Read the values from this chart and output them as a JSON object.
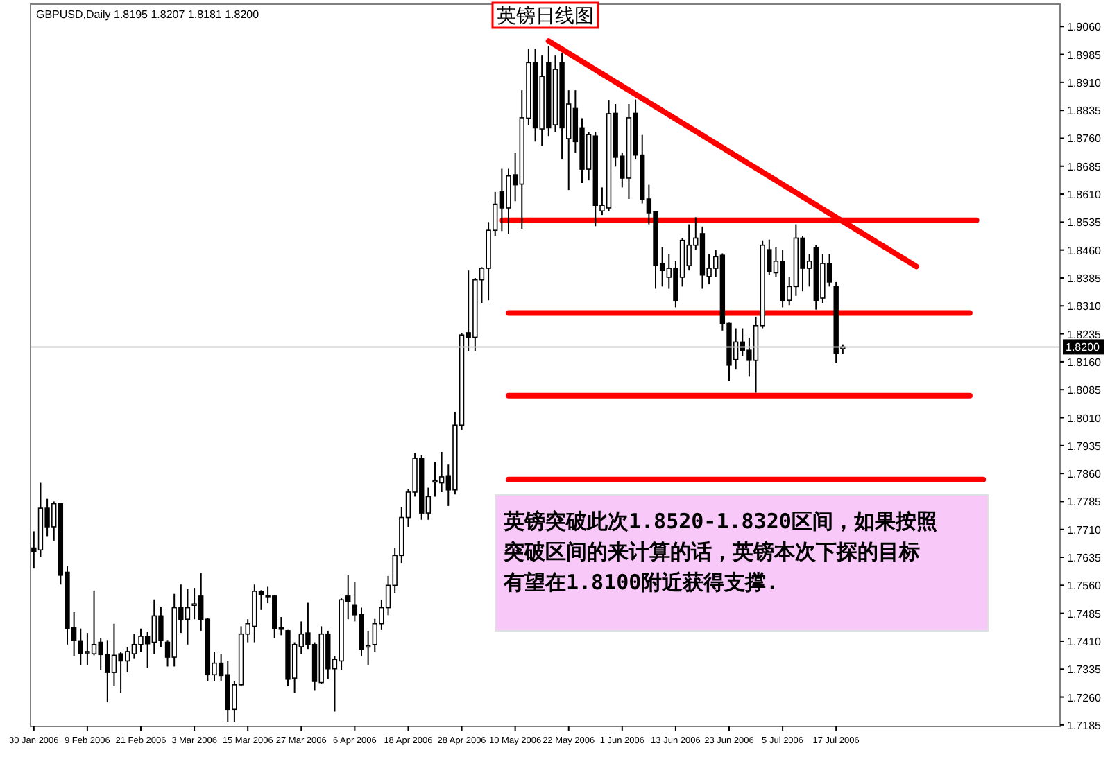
{
  "chart_data": {
    "type": "candlestick",
    "title": "GBPUSD,Daily 1.8195 1.8207 1.8181 1.8200",
    "subtitle": "英镑日线图",
    "annotations": [
      "英镑突破此次1.8520-1.8320区间，如果按照突破区间的来计算的话，英镑本次下探的目标有望在1.8100附近获得支撑."
    ],
    "ylim": [
      1.7181,
      1.912
    ],
    "categories": [
      "30 Jan 2006",
      null,
      null,
      null,
      null,
      null,
      null,
      null,
      "9 Feb 2006",
      null,
      null,
      null,
      null,
      null,
      null,
      null,
      "21 Feb 2006",
      null,
      null,
      null,
      null,
      null,
      null,
      null,
      "3 Mar 2006",
      null,
      null,
      null,
      null,
      null,
      null,
      null,
      "15 Mar 2006",
      null,
      null,
      null,
      null,
      null,
      null,
      null,
      "27 Mar 2006",
      null,
      null,
      null,
      null,
      null,
      null,
      null,
      "6 Apr 2006",
      null,
      null,
      null,
      null,
      null,
      null,
      null,
      "18 Apr 2006",
      null,
      null,
      null,
      null,
      null,
      null,
      null,
      "28 Apr 2006",
      null,
      null,
      null,
      null,
      null,
      null,
      null,
      "10 May 2006",
      null,
      null,
      null,
      null,
      null,
      null,
      null,
      "22 May 2006",
      null,
      null,
      null,
      null,
      null,
      null,
      null,
      "1 Jun 2006",
      null,
      null,
      null,
      null,
      null,
      null,
      null,
      "13 Jun 2006",
      null,
      null,
      null,
      null,
      null,
      null,
      null,
      "23 Jun 2006",
      null,
      null,
      null,
      null,
      null,
      null,
      null,
      "5 Jul 2006",
      null,
      null,
      null,
      null,
      null,
      null,
      null,
      "17 Jul 2006",
      null,
      null,
      null,
      null,
      null,
      null,
      null,
      null,
      null,
      null,
      null,
      null,
      null,
      null,
      null,
      null,
      null,
      null,
      null,
      null,
      null,
      null,
      null,
      null,
      null,
      null,
      null,
      null,
      null,
      null,
      null,
      null,
      null
    ],
    "yticks": [
      1.7185,
      {
        "value": 1.726,
        "label": "1.7260"
      },
      1.7335,
      {
        "value": 1.741,
        "label": "1.7410"
      },
      1.7485,
      {
        "value": 1.756,
        "label": "1.7560"
      },
      1.7635,
      {
        "value": 1.771,
        "label": "1.7710"
      },
      1.7785,
      {
        "value": 1.786,
        "label": "1.7860"
      },
      1.7935,
      {
        "value": 1.801,
        "label": "1.8010"
      },
      1.8085,
      {
        "value": 1.816,
        "label": "1.8160"
      },
      1.8235,
      {
        "value": 1.831,
        "label": "1.8310"
      },
      1.8385,
      {
        "value": 1.846,
        "label": "1.8460"
      },
      1.8535,
      {
        "value": 1.861,
        "label": "1.8610"
      },
      1.8685,
      {
        "value": 1.876,
        "label": "1.8760"
      },
      1.8835,
      {
        "value": 1.891,
        "label": "1.8910"
      },
      1.8985,
      {
        "value": 1.906,
        "label": "1.9060"
      }
    ],
    "ref_lines": [
      {
        "axis": "y",
        "value": 1.82,
        "label": "1.8200",
        "color": "#c8c8c8"
      }
    ],
    "ohlc": [
      [
        1.766,
        1.7705,
        1.7605,
        1.765
      ],
      [
        1.7655,
        1.7835,
        1.7636,
        1.7767
      ],
      [
        1.7767,
        1.7792,
        1.7692,
        1.7717
      ],
      [
        1.7717,
        1.7785,
        1.768,
        1.7779
      ],
      [
        1.7779,
        1.778,
        1.7562,
        1.7587
      ],
      [
        1.7595,
        1.7612,
        1.7401,
        1.7444
      ],
      [
        1.7447,
        1.7488,
        1.737,
        1.7413
      ],
      [
        1.7411,
        1.7444,
        1.7345,
        1.7376
      ],
      [
        1.738,
        1.7432,
        1.7345,
        1.7382
      ],
      [
        1.7376,
        1.7546,
        1.7372,
        1.7401
      ],
      [
        1.7407,
        1.7419,
        1.7333,
        1.7374
      ],
      [
        1.7374,
        1.7413,
        1.7246,
        1.7326
      ],
      [
        1.7326,
        1.7457,
        1.7289,
        1.7372
      ],
      [
        1.7376,
        1.7382,
        1.7271,
        1.7357
      ],
      [
        1.7357,
        1.7395,
        1.7326,
        1.7382
      ],
      [
        1.7376,
        1.7429,
        1.7364,
        1.7401
      ],
      [
        1.7401,
        1.7444,
        1.7382,
        1.7423
      ],
      [
        1.7423,
        1.7435,
        1.7339,
        1.7403
      ],
      [
        1.7407,
        1.7522,
        1.7376,
        1.7478
      ],
      [
        1.7478,
        1.7503,
        1.7395,
        1.7413
      ],
      [
        1.7407,
        1.7413,
        1.7342,
        1.7367
      ],
      [
        1.7367,
        1.7537,
        1.7342,
        1.75
      ],
      [
        1.75,
        1.7562,
        1.7432,
        1.7469
      ],
      [
        1.7469,
        1.755,
        1.7401,
        1.75
      ],
      [
        1.7508,
        1.7553,
        1.7469,
        1.751
      ],
      [
        1.7531,
        1.7593,
        1.7438,
        1.7469
      ],
      [
        1.7469,
        1.7472,
        1.7302,
        1.732
      ],
      [
        1.732,
        1.7382,
        1.7302,
        1.7351
      ],
      [
        1.7351,
        1.7376,
        1.7302,
        1.7318
      ],
      [
        1.732,
        1.7357,
        1.7194,
        1.7227
      ],
      [
        1.7227,
        1.7302,
        1.7194,
        1.7293
      ],
      [
        1.7293,
        1.745,
        1.7289,
        1.7429
      ],
      [
        1.7429,
        1.7469,
        1.7407,
        1.7457
      ],
      [
        1.745,
        1.7562,
        1.7407,
        1.7544
      ],
      [
        1.7544,
        1.7547,
        1.7494,
        1.7535
      ],
      [
        1.7533,
        1.7556,
        1.7512,
        1.7531
      ],
      [
        1.7531,
        1.7534,
        1.7419,
        1.7444
      ],
      [
        1.7447,
        1.7475,
        1.7426,
        1.7442
      ],
      [
        1.7438,
        1.744,
        1.7289,
        1.7308
      ],
      [
        1.7311,
        1.7407,
        1.7271,
        1.7401
      ],
      [
        1.7395,
        1.7463,
        1.7376,
        1.7429
      ],
      [
        1.7432,
        1.7513,
        1.7389,
        1.7401
      ],
      [
        1.7401,
        1.7407,
        1.7277,
        1.7302
      ],
      [
        1.7299,
        1.745,
        1.7295,
        1.7429
      ],
      [
        1.7429,
        1.7438,
        1.7308,
        1.7336
      ],
      [
        1.7336,
        1.737,
        1.7221,
        1.7361
      ],
      [
        1.7357,
        1.7525,
        1.7333,
        1.7521
      ],
      [
        1.7531,
        1.7587,
        1.7469,
        1.7517
      ],
      [
        1.7506,
        1.7568,
        1.7463,
        1.7481
      ],
      [
        1.7481,
        1.75,
        1.737,
        1.7389
      ],
      [
        1.7395,
        1.7438,
        1.7345,
        1.7398
      ],
      [
        1.7401,
        1.747,
        1.738,
        1.7457
      ],
      [
        1.7457,
        1.752,
        1.744,
        1.75
      ],
      [
        1.75,
        1.7585,
        1.748,
        1.756
      ],
      [
        1.756,
        1.766,
        1.754,
        1.764
      ],
      [
        1.764,
        1.777,
        1.762,
        1.7742
      ],
      [
        1.7742,
        1.7819,
        1.7717,
        1.781
      ],
      [
        1.781,
        1.7915,
        1.7798,
        1.7901
      ],
      [
        1.7901,
        1.7909,
        1.7736,
        1.7754
      ],
      [
        1.7754,
        1.7822,
        1.7736,
        1.7798
      ],
      [
        1.784,
        1.7891,
        1.7798,
        1.7841
      ],
      [
        1.7835,
        1.7918,
        1.781,
        1.7851
      ],
      [
        1.7854,
        1.7884,
        1.7773,
        1.7816
      ],
      [
        1.7816,
        1.8025,
        1.7804,
        1.799
      ],
      [
        1.799,
        1.8236,
        1.7977,
        1.8232
      ],
      [
        1.8238,
        1.8405,
        1.8188,
        1.8226
      ],
      [
        1.8226,
        1.8385,
        1.8188,
        1.838
      ],
      [
        1.838,
        1.8414,
        1.8318,
        1.8411
      ],
      [
        1.8411,
        1.8535,
        1.8325,
        1.8513
      ],
      [
        1.8513,
        1.8616,
        1.8498,
        1.8583
      ],
      [
        1.8616,
        1.8678,
        1.8511,
        1.8573
      ],
      [
        1.8573,
        1.8678,
        1.8504,
        1.8659
      ],
      [
        1.8662,
        1.8721,
        1.8591,
        1.8635
      ],
      [
        1.8637,
        1.8889,
        1.8517,
        1.8815
      ],
      [
        1.8814,
        1.9,
        1.8795,
        1.8963
      ],
      [
        1.8963,
        1.9,
        1.8751,
        1.8788
      ],
      [
        1.8785,
        1.8982,
        1.874,
        1.8926
      ],
      [
        1.8963,
        1.9008,
        1.8766,
        1.8788
      ],
      [
        1.8796,
        1.8982,
        1.8777,
        1.8945
      ],
      [
        1.8963,
        1.8989,
        1.8703,
        1.8788
      ],
      [
        1.8759,
        1.8889,
        1.8621,
        1.8852
      ],
      [
        1.884,
        1.8889,
        1.8721,
        1.8751
      ],
      [
        1.8788,
        1.8814,
        1.864,
        1.8677
      ],
      [
        1.8677,
        1.8777,
        1.8647,
        1.877
      ],
      [
        1.8766,
        1.8777,
        1.8524,
        1.858
      ],
      [
        1.8565,
        1.8628,
        1.8554,
        1.858
      ],
      [
        1.8573,
        1.8863,
        1.8565,
        1.8826
      ],
      [
        1.8827,
        1.8852,
        1.8684,
        1.8709
      ],
      [
        1.8712,
        1.8721,
        1.8628,
        1.8653
      ],
      [
        1.8653,
        1.8852,
        1.8597,
        1.8815
      ],
      [
        1.8827,
        1.8864,
        1.8703,
        1.8715
      ],
      [
        1.8715,
        1.8769,
        1.8585,
        1.8595
      ],
      [
        1.8597,
        1.8635,
        1.8529,
        1.856
      ],
      [
        1.8563,
        1.8565,
        1.8356,
        1.8418
      ],
      [
        1.8424,
        1.8467,
        1.8362,
        1.8405
      ],
      [
        1.8387,
        1.8449,
        1.8356,
        1.8411
      ],
      [
        1.8411,
        1.843,
        1.8306,
        1.8325
      ],
      [
        1.8387,
        1.8492,
        1.8362,
        1.8486
      ],
      [
        1.8418,
        1.8529,
        1.8405,
        1.8473
      ],
      [
        1.8473,
        1.8548,
        1.8461,
        1.8492
      ],
      [
        1.8504,
        1.8523,
        1.8356,
        1.8393
      ],
      [
        1.8389,
        1.8449,
        1.8368,
        1.8411
      ],
      [
        1.8411,
        1.8461,
        1.8387,
        1.8442
      ],
      [
        1.8446,
        1.8451,
        1.8244,
        1.8263
      ],
      [
        1.8263,
        1.8265,
        1.8108,
        1.8151
      ],
      [
        1.8166,
        1.825,
        1.8139,
        1.8213
      ],
      [
        1.8213,
        1.825,
        1.8176,
        1.8191
      ],
      [
        1.8191,
        1.8225,
        1.812,
        1.8164
      ],
      [
        1.8164,
        1.8281,
        1.8077,
        1.8257
      ],
      [
        1.8257,
        1.8486,
        1.825,
        1.8473
      ],
      [
        1.8461,
        1.8488,
        1.8393,
        1.8402
      ],
      [
        1.8399,
        1.8467,
        1.8387,
        1.843
      ],
      [
        1.843,
        1.8461,
        1.8306,
        1.8325
      ],
      [
        1.8325,
        1.8387,
        1.8312,
        1.8362
      ],
      [
        1.8362,
        1.8529,
        1.8337,
        1.8492
      ],
      [
        1.8492,
        1.8498,
        1.8349,
        1.8411
      ],
      [
        1.8411,
        1.8449,
        1.8362,
        1.843
      ],
      [
        1.8467,
        1.8473,
        1.83,
        1.8325
      ],
      [
        1.8331,
        1.8449,
        1.8318,
        1.8424
      ],
      [
        1.8424,
        1.8449,
        1.8362,
        1.8374
      ],
      [
        1.8362,
        1.8374,
        1.8157,
        1.8182
      ],
      [
        1.8195,
        1.8207,
        1.8181,
        1.82
      ],
      null,
      null,
      null,
      null,
      null,
      null,
      null,
      null,
      null,
      null,
      null,
      null,
      null,
      null,
      null,
      null,
      null,
      null,
      null,
      null,
      null,
      null,
      null,
      null,
      null,
      null,
      null,
      null,
      null,
      null,
      null,
      null
    ],
    "series": [
      {
        "type": "line",
        "color": "#ff0000",
        "values": [
          null,
          null,
          null,
          null,
          null,
          null,
          null,
          null,
          null,
          null,
          null,
          null,
          null,
          null,
          null,
          null,
          null,
          null,
          null,
          null,
          null,
          null,
          null,
          null,
          null,
          null,
          null,
          null,
          null,
          null,
          null,
          null,
          null,
          null,
          null,
          null,
          null,
          null,
          null,
          null,
          null,
          null,
          null,
          null,
          null,
          null,
          null,
          null,
          null,
          null,
          null,
          null,
          null,
          null,
          null,
          null,
          null,
          null,
          null,
          null,
          null,
          null,
          null,
          null,
          null,
          null,
          null,
          null,
          null,
          null,
          null,
          null,
          null,
          null,
          null,
          null,
          null,
          1.9021,
          1.901,
          1.8999,
          1.8988,
          1.8977,
          1.8966,
          1.8955,
          1.8944,
          1.8933,
          1.8922,
          1.8911,
          1.89,
          1.8889,
          1.8878,
          1.8867,
          1.8856,
          1.8845,
          1.8834,
          1.8823,
          1.8812,
          1.8801,
          1.879,
          1.8779,
          1.8768,
          1.8757,
          1.8746,
          1.8735,
          1.8724,
          1.8713,
          1.8702,
          1.8691,
          1.868,
          1.8669,
          1.8658,
          1.8647,
          1.8636,
          1.8625,
          1.8614,
          1.8603,
          1.8592,
          1.8581,
          1.857,
          1.8559,
          1.8548,
          1.8537,
          1.8526,
          1.8515,
          1.8504,
          1.8493,
          1.8482,
          1.8471,
          1.846,
          1.8449,
          1.8438,
          1.8427,
          1.8416,
          null,
          null,
          null,
          null,
          null,
          null,
          null,
          null,
          null,
          null,
          null,
          null,
          null,
          null,
          null,
          null,
          null,
          null,
          null,
          null,
          null
        ]
      },
      {
        "type": "line",
        "color": "#ff0000",
        "values": [
          null,
          null,
          null,
          null,
          null,
          null,
          null,
          null,
          null,
          null,
          null,
          null,
          null,
          null,
          null,
          null,
          null,
          null,
          null,
          null,
          null,
          null,
          null,
          null,
          null,
          null,
          null,
          null,
          null,
          null,
          null,
          null,
          null,
          null,
          null,
          null,
          null,
          null,
          null,
          null,
          null,
          null,
          null,
          null,
          null,
          null,
          null,
          null,
          null,
          null,
          null,
          null,
          null,
          null,
          null,
          null,
          null,
          null,
          null,
          null,
          null,
          null,
          null,
          null,
          null,
          null,
          null,
          null,
          null,
          null,
          1.854,
          1.854,
          1.854,
          1.854,
          1.854,
          1.854,
          1.854,
          1.854,
          1.854,
          1.854,
          1.854,
          1.854,
          1.854,
          1.854,
          1.854,
          1.854,
          1.854,
          1.854,
          1.854,
          1.854,
          1.854,
          1.854,
          1.854,
          1.854,
          1.854,
          1.854,
          1.854,
          1.854,
          1.854,
          1.854,
          1.854,
          1.854,
          1.854,
          1.854,
          1.854,
          1.854,
          1.854,
          1.854,
          1.854,
          1.854,
          1.854,
          1.854,
          1.854,
          1.854,
          1.854,
          1.854,
          1.854,
          1.854,
          1.854,
          1.854,
          1.854,
          1.854,
          1.854,
          1.854,
          1.854,
          1.854,
          1.854,
          1.854,
          1.854,
          1.854,
          1.854,
          1.854,
          1.854,
          1.854,
          1.854,
          1.854,
          1.854,
          1.854,
          1.854,
          1.854,
          1.854,
          1.854,
          null,
          null,
          null,
          null,
          null,
          null,
          null,
          null,
          null,
          null,
          null,
          null
        ]
      },
      {
        "type": "line",
        "color": "#ff0000",
        "values": [
          null,
          null,
          null,
          null,
          null,
          null,
          null,
          null,
          null,
          null,
          null,
          null,
          null,
          null,
          null,
          null,
          null,
          null,
          null,
          null,
          null,
          null,
          null,
          null,
          null,
          null,
          null,
          null,
          null,
          null,
          null,
          null,
          null,
          null,
          null,
          null,
          null,
          null,
          null,
          null,
          null,
          null,
          null,
          null,
          null,
          null,
          null,
          null,
          null,
          null,
          null,
          null,
          null,
          null,
          null,
          null,
          null,
          null,
          null,
          null,
          null,
          null,
          null,
          null,
          null,
          null,
          null,
          null,
          null,
          null,
          null,
          1.8291,
          1.8291,
          1.8291,
          1.8291,
          1.8291,
          1.8291,
          1.8291,
          1.8291,
          1.8291,
          1.8291,
          1.8291,
          1.8291,
          1.8291,
          1.8291,
          1.8291,
          1.8291,
          1.8291,
          1.8291,
          1.8291,
          1.8291,
          1.8291,
          1.8291,
          1.8291,
          1.8291,
          1.8291,
          1.8291,
          1.8291,
          1.8291,
          1.8291,
          1.8291,
          1.8291,
          1.8291,
          1.8291,
          1.8291,
          1.8291,
          1.8291,
          1.8291,
          1.8291,
          1.8291,
          1.8291,
          1.8291,
          1.8291,
          1.8291,
          1.8291,
          1.8291,
          1.8291,
          1.8291,
          1.8291,
          1.8291,
          1.8291,
          1.8291,
          1.8291,
          1.8291,
          1.8291,
          1.8291,
          1.8291,
          1.8291,
          1.8291,
          1.8291,
          1.8291,
          1.8291,
          1.8291,
          1.8291,
          1.8291,
          1.8291,
          1.8291,
          1.8291,
          1.8291,
          1.8291,
          1.8291,
          null,
          null,
          null,
          null,
          null,
          null,
          null,
          null,
          null,
          null,
          null,
          null,
          null
        ]
      },
      {
        "type": "line",
        "color": "#ff0000",
        "values": [
          null,
          null,
          null,
          null,
          null,
          null,
          null,
          null,
          null,
          null,
          null,
          null,
          null,
          null,
          null,
          null,
          null,
          null,
          null,
          null,
          null,
          null,
          null,
          null,
          null,
          null,
          null,
          null,
          null,
          null,
          null,
          null,
          null,
          null,
          null,
          null,
          null,
          null,
          null,
          null,
          null,
          null,
          null,
          null,
          null,
          null,
          null,
          null,
          null,
          null,
          null,
          null,
          null,
          null,
          null,
          null,
          null,
          null,
          null,
          null,
          null,
          null,
          null,
          null,
          null,
          null,
          null,
          null,
          null,
          null,
          null,
          1.8069,
          1.8069,
          1.8069,
          1.8069,
          1.8069,
          1.8069,
          1.8069,
          1.8069,
          1.8069,
          1.8069,
          1.8069,
          1.8069,
          1.8069,
          1.8069,
          1.8069,
          1.8069,
          1.8069,
          1.8069,
          1.8069,
          1.8069,
          1.8069,
          1.8069,
          1.8069,
          1.8069,
          1.8069,
          1.8069,
          1.8069,
          1.8069,
          1.8069,
          1.8069,
          1.8069,
          1.8069,
          1.8069,
          1.8069,
          1.8069,
          1.8069,
          1.8069,
          1.8069,
          1.8069,
          1.8069,
          1.8069,
          1.8069,
          1.8069,
          1.8069,
          1.8069,
          1.8069,
          1.8069,
          1.8069,
          1.8069,
          1.8069,
          1.8069,
          1.8069,
          1.8069,
          1.8069,
          1.8069,
          1.8069,
          1.8069,
          1.8069,
          1.8069,
          1.8069,
          1.8069,
          1.8069,
          1.8069,
          1.8069,
          1.8069,
          1.8069,
          1.8069,
          1.8069,
          1.8069,
          1.8069,
          null,
          null,
          null,
          null,
          null,
          null,
          null,
          null,
          null,
          null,
          null,
          null,
          null
        ]
      },
      {
        "type": "line",
        "color": "#ff0000",
        "values": [
          null,
          null,
          null,
          null,
          null,
          null,
          null,
          null,
          null,
          null,
          null,
          null,
          null,
          null,
          null,
          null,
          null,
          null,
          null,
          null,
          null,
          null,
          null,
          null,
          null,
          null,
          null,
          null,
          null,
          null,
          null,
          null,
          null,
          null,
          null,
          null,
          null,
          null,
          null,
          null,
          null,
          null,
          null,
          null,
          null,
          null,
          null,
          null,
          null,
          null,
          null,
          null,
          null,
          null,
          null,
          null,
          null,
          null,
          null,
          null,
          null,
          null,
          null,
          null,
          null,
          null,
          null,
          null,
          null,
          null,
          null,
          1.7844,
          1.7844,
          1.7844,
          1.7844,
          1.7844,
          1.7844,
          1.7844,
          1.7844,
          1.7844,
          1.7844,
          1.7844,
          1.7844,
          1.7844,
          1.7844,
          1.7844,
          1.7844,
          1.7844,
          1.7844,
          1.7844,
          1.7844,
          1.7844,
          1.7844,
          1.7844,
          1.7844,
          1.7844,
          1.7844,
          1.7844,
          1.7844,
          1.7844,
          1.7844,
          1.7844,
          1.7844,
          1.7844,
          1.7844,
          1.7844,
          1.7844,
          1.7844,
          1.7844,
          1.7844,
          1.7844,
          1.7844,
          1.7844,
          1.7844,
          1.7844,
          1.7844,
          1.7844,
          1.7844,
          1.7844,
          1.7844,
          1.7844,
          1.7844,
          1.7844,
          1.7844,
          1.7844,
          1.7844,
          1.7844,
          1.7844,
          1.7844,
          1.7844,
          1.7844,
          1.7844,
          1.7844,
          1.7844,
          1.7844,
          1.7844,
          1.7844,
          1.7844,
          1.7844,
          1.7844,
          1.7844,
          1.7844,
          1.7844,
          null,
          null,
          null,
          null,
          null,
          null,
          null,
          null,
          null,
          null,
          null
        ]
      }
    ]
  }
}
